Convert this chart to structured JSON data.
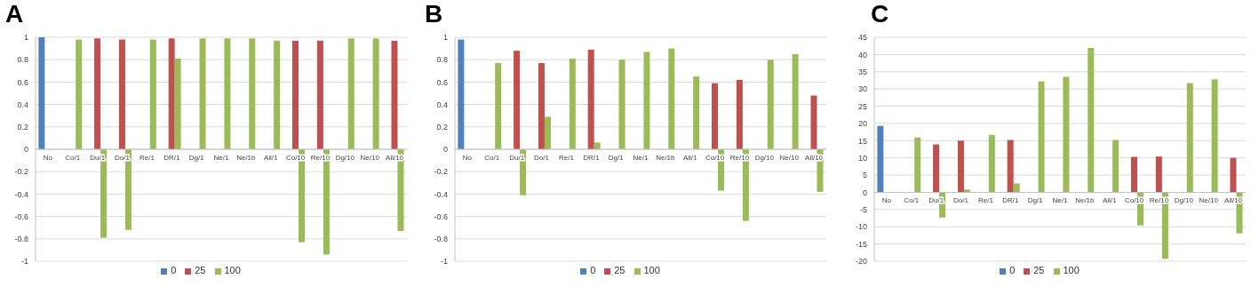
{
  "chart_data": [
    {
      "type": "bar",
      "title": "A",
      "categories": [
        "No",
        "Co/1",
        "Du/1",
        "Do/1",
        "Re/1",
        "DR/1",
        "Dg/1",
        "Ne/1",
        "Ne/1b",
        "All/1",
        "Co/10",
        "Re/10",
        "Dg/10",
        "Ne/10",
        "All/10"
      ],
      "series": [
        {
          "name": "0",
          "color": "#4f81bd",
          "values": [
            1,
            null,
            null,
            null,
            null,
            null,
            null,
            null,
            null,
            null,
            null,
            null,
            null,
            null,
            null
          ]
        },
        {
          "name": "25",
          "color": "#c0504d",
          "values": [
            null,
            null,
            0.99,
            0.98,
            null,
            0.99,
            null,
            null,
            null,
            null,
            0.97,
            0.97,
            null,
            null,
            0.97
          ]
        },
        {
          "name": "100",
          "color": "#9bbb59",
          "values": [
            null,
            0.98,
            -0.79,
            -0.72,
            0.98,
            0.81,
            0.99,
            0.99,
            0.99,
            0.97,
            -0.83,
            -0.94,
            0.99,
            0.99,
            -0.73
          ]
        }
      ],
      "ylim": [
        -1,
        1
      ],
      "yticks": [
        -1,
        -0.8,
        -0.6,
        -0.4,
        -0.2,
        0,
        0.2,
        0.4,
        0.6,
        0.8,
        1
      ],
      "grid": "y",
      "legend": "bottom"
    },
    {
      "type": "bar",
      "title": "B",
      "categories": [
        "No",
        "Co/1",
        "Du/1",
        "Do/1",
        "Re/1",
        "DR/1",
        "Dg/1",
        "Ne/1",
        "Ne/1b",
        "All/1",
        "Co/10",
        "Re/10",
        "Dg/10",
        "Ne/10",
        "All/10"
      ],
      "series": [
        {
          "name": "0",
          "color": "#4f81bd",
          "values": [
            0.98,
            null,
            null,
            null,
            null,
            null,
            null,
            null,
            null,
            null,
            null,
            null,
            null,
            null,
            null
          ]
        },
        {
          "name": "25",
          "color": "#c0504d",
          "values": [
            null,
            null,
            0.88,
            0.77,
            null,
            0.89,
            null,
            null,
            null,
            null,
            0.59,
            0.62,
            null,
            null,
            0.48
          ]
        },
        {
          "name": "100",
          "color": "#9bbb59",
          "values": [
            null,
            0.77,
            -0.41,
            0.29,
            0.81,
            0.06,
            0.8,
            0.87,
            0.9,
            0.65,
            -0.37,
            -0.64,
            0.8,
            0.85,
            -0.38
          ]
        }
      ],
      "ylim": [
        -1,
        1
      ],
      "yticks": [
        -1,
        -0.8,
        -0.6,
        -0.4,
        -0.2,
        0,
        0.2,
        0.4,
        0.6,
        0.8,
        1
      ],
      "grid": "y",
      "legend": "bottom"
    },
    {
      "type": "bar",
      "title": "C",
      "categories": [
        "No",
        "Co/1",
        "Du/1",
        "Do/1",
        "Re/1",
        "DR/1",
        "Dg/1",
        "Ne/1",
        "Ne/1b",
        "All/1",
        "Co/10",
        "Re/10",
        "Dg/10",
        "Ne/10",
        "All/10"
      ],
      "series": [
        {
          "name": "0",
          "color": "#4f81bd",
          "values": [
            19.3,
            null,
            null,
            null,
            null,
            null,
            null,
            null,
            null,
            null,
            null,
            null,
            null,
            null,
            null
          ]
        },
        {
          "name": "25",
          "color": "#c0504d",
          "values": [
            null,
            null,
            13.9,
            15,
            null,
            15.2,
            null,
            null,
            null,
            null,
            10.3,
            10.4,
            null,
            null,
            10
          ]
        },
        {
          "name": "100",
          "color": "#9bbb59",
          "values": [
            null,
            15.9,
            -7.3,
            0.8,
            16.7,
            2.6,
            32.2,
            33.5,
            41.9,
            15.2,
            -9.6,
            -19.3,
            31.7,
            32.8,
            -11.9
          ]
        }
      ],
      "ylim": [
        -20,
        45
      ],
      "yticks": [
        -20,
        -15,
        -10,
        -5,
        0,
        5,
        10,
        15,
        20,
        25,
        30,
        35,
        40,
        45
      ],
      "grid": "y",
      "legend": "bottom"
    }
  ]
}
